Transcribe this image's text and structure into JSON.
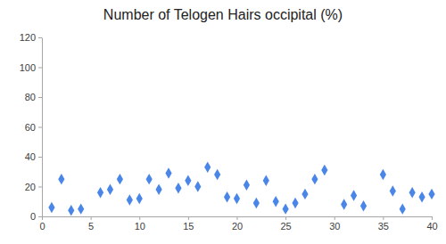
{
  "chart_data": {
    "type": "scatter",
    "title": "Number of Telogen Hairs occipital (%)",
    "x": [
      1,
      2,
      3,
      4,
      6,
      7,
      8,
      9,
      10,
      11,
      12,
      13,
      14,
      15,
      16,
      17,
      18,
      19,
      20,
      21,
      22,
      23,
      24,
      25,
      26,
      27,
      28,
      29,
      31,
      32,
      33,
      35,
      36,
      37,
      38,
      39,
      40
    ],
    "values": [
      6,
      25,
      4,
      5,
      16,
      18,
      25,
      11,
      12,
      25,
      18,
      29,
      19,
      24,
      20,
      33,
      28,
      13,
      12,
      21,
      9,
      24,
      10,
      5,
      9,
      15,
      25,
      31,
      8,
      14,
      7,
      28,
      17,
      5,
      16,
      13,
      15
    ],
    "color": "#4a86e8",
    "marker": "diamond",
    "xlim": [
      0,
      40
    ],
    "xticks": [
      0,
      5,
      10,
      15,
      20,
      25,
      30,
      35,
      40
    ],
    "ylim": [
      0,
      120
    ],
    "yticks": [
      0,
      20,
      40,
      60,
      80,
      100,
      120
    ],
    "grid": false
  }
}
